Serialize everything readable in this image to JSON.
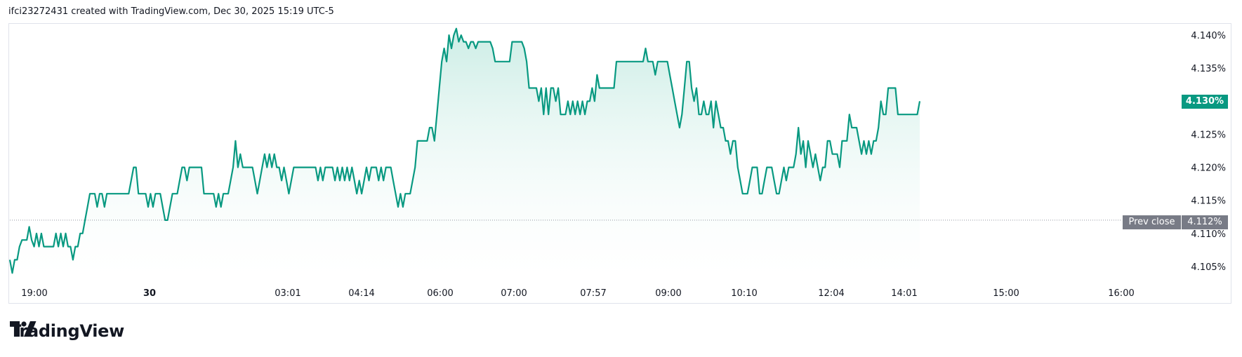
{
  "header": {
    "attribution": "ifci23272431 created with TradingView.com, Dec 30, 2025 15:19 UTC-5"
  },
  "brand": {
    "name": "TradingView",
    "icon": "tradingview-logo-icon"
  },
  "colors": {
    "line": "#089981",
    "fill_top": "#c9ece4",
    "fill_bottom": "#ffffff",
    "badge": "#089981",
    "prev_badge": "#787b86",
    "grid": "#e0e3eb"
  },
  "prev_close": {
    "label": "Prev close",
    "value_label": "4.112%",
    "value": 4.112
  },
  "last_price": {
    "label": "4.130%",
    "value": 4.13
  },
  "chart_data": {
    "type": "area",
    "x_ticks": [
      {
        "label": "19:00",
        "bold": false
      },
      {
        "label": "30",
        "bold": true
      },
      {
        "label": "03:01",
        "bold": false
      },
      {
        "label": "04:14",
        "bold": false
      },
      {
        "label": "06:00",
        "bold": false
      },
      {
        "label": "07:00",
        "bold": false
      },
      {
        "label": "07:57",
        "bold": false
      },
      {
        "label": "09:00",
        "bold": false
      },
      {
        "label": "10:10",
        "bold": false
      },
      {
        "label": "12:04",
        "bold": false
      },
      {
        "label": "14:01",
        "bold": false
      },
      {
        "label": "15:00",
        "bold": false
      },
      {
        "label": "16:00",
        "bold": false
      }
    ],
    "y_ticks": [
      "4.140%",
      "4.135%",
      "4.130%",
      "4.125%",
      "4.120%",
      "4.115%",
      "4.110%",
      "4.105%"
    ],
    "y_tick_values": [
      4.14,
      4.135,
      4.13,
      4.125,
      4.12,
      4.115,
      4.11,
      4.105
    ],
    "ylim": [
      4.1035,
      4.1415
    ],
    "series": [
      {
        "values": [
          4.106,
          4.104,
          4.106,
          4.106,
          4.108,
          4.109,
          4.109,
          4.109,
          4.111,
          4.109,
          4.108,
          4.11,
          4.108,
          4.11,
          4.108,
          4.108,
          4.108,
          4.108,
          4.108,
          4.11,
          4.108,
          4.11,
          4.108,
          4.11,
          4.108,
          4.108,
          4.106,
          4.108,
          4.108,
          4.11,
          4.11,
          4.112,
          4.114,
          4.116,
          4.116,
          4.116,
          4.114,
          4.116,
          4.116,
          4.114,
          4.116,
          4.116,
          4.116,
          4.116,
          4.116,
          4.116,
          4.116,
          4.116,
          4.116,
          4.116,
          4.118,
          4.12,
          4.12,
          4.116,
          4.116,
          4.116,
          4.116,
          4.114,
          4.116,
          4.114,
          4.116,
          4.116,
          4.116,
          4.114,
          4.112,
          4.112,
          4.114,
          4.116,
          4.116,
          4.116,
          4.118,
          4.12,
          4.12,
          4.118,
          4.12,
          4.12,
          4.12,
          4.12,
          4.12,
          4.12,
          4.116,
          4.116,
          4.116,
          4.116,
          4.116,
          4.114,
          4.116,
          4.114,
          4.116,
          4.116,
          4.116,
          4.118,
          4.12,
          4.124,
          4.12,
          4.122,
          4.12,
          4.12,
          4.12,
          4.12,
          4.12,
          4.118,
          4.116,
          4.118,
          4.12,
          4.122,
          4.12,
          4.122,
          4.12,
          4.122,
          4.12,
          4.12,
          4.118,
          4.12,
          4.118,
          4.116,
          4.118,
          4.12,
          4.12,
          4.12,
          4.12,
          4.12,
          4.12,
          4.12,
          4.12,
          4.12,
          4.12,
          4.118,
          4.12,
          4.118,
          4.12,
          4.12,
          4.12,
          4.12,
          4.118,
          4.12,
          4.118,
          4.12,
          4.118,
          4.12,
          4.118,
          4.12,
          4.118,
          4.116,
          4.118,
          4.116,
          4.118,
          4.12,
          4.118,
          4.12,
          4.12,
          4.12,
          4.118,
          4.12,
          4.118,
          4.12,
          4.12,
          4.12,
          4.118,
          4.116,
          4.114,
          4.116,
          4.114,
          4.116,
          4.116,
          4.116,
          4.118,
          4.12,
          4.124,
          4.124,
          4.124,
          4.124,
          4.124,
          4.126,
          4.126,
          4.124,
          4.128,
          4.132,
          4.136,
          4.138,
          4.136,
          4.14,
          4.138,
          4.14,
          4.141,
          4.139,
          4.14,
          4.139,
          4.139,
          4.138,
          4.139,
          4.139,
          4.138,
          4.139,
          4.139,
          4.139,
          4.139,
          4.139,
          4.139,
          4.138,
          4.136,
          4.136,
          4.136,
          4.136,
          4.136,
          4.136,
          4.136,
          4.139,
          4.139,
          4.139,
          4.139,
          4.139,
          4.138,
          4.136,
          4.132,
          4.132,
          4.132,
          4.132,
          4.13,
          4.132,
          4.128,
          4.132,
          4.128,
          4.132,
          4.132,
          4.13,
          4.132,
          4.128,
          4.128,
          4.128,
          4.13,
          4.128,
          4.13,
          4.128,
          4.13,
          4.128,
          4.13,
          4.128,
          4.13,
          4.13,
          4.132,
          4.13,
          4.134,
          4.132,
          4.132,
          4.132,
          4.132,
          4.132,
          4.132,
          4.132,
          4.136,
          4.136,
          4.136,
          4.136,
          4.136,
          4.136,
          4.136,
          4.136,
          4.136,
          4.136,
          4.136,
          4.136,
          4.138,
          4.136,
          4.136,
          4.136,
          4.134,
          4.136,
          4.136,
          4.136,
          4.136,
          4.136,
          4.134,
          4.132,
          4.13,
          4.128,
          4.126,
          4.128,
          4.132,
          4.136,
          4.136,
          4.132,
          4.13,
          4.132,
          4.128,
          4.128,
          4.13,
          4.128,
          4.128,
          4.13,
          4.126,
          4.13,
          4.128,
          4.126,
          4.126,
          4.124,
          4.124,
          4.122,
          4.124,
          4.124,
          4.12,
          4.118,
          4.116,
          4.116,
          4.116,
          4.118,
          4.12,
          4.12,
          4.12,
          4.116,
          4.116,
          4.118,
          4.12,
          4.12,
          4.12,
          4.118,
          4.116,
          4.116,
          4.118,
          4.12,
          4.118,
          4.12,
          4.12,
          4.12,
          4.122,
          4.126,
          4.122,
          4.124,
          4.12,
          4.124,
          4.122,
          4.12,
          4.122,
          4.12,
          4.118,
          4.12,
          4.12,
          4.124,
          4.124,
          4.122,
          4.122,
          4.122,
          4.12,
          4.124,
          4.124,
          4.124,
          4.128,
          4.126,
          4.126,
          4.126,
          4.124,
          4.122,
          4.124,
          4.122,
          4.124,
          4.122,
          4.124,
          4.124,
          4.126,
          4.13,
          4.128,
          4.128,
          4.132,
          4.132,
          4.132,
          4.132,
          4.128,
          4.128,
          4.128,
          4.128,
          4.128,
          4.128,
          4.128,
          4.128,
          4.128,
          4.13
        ]
      }
    ],
    "grid": false,
    "line_color": "#089981"
  }
}
